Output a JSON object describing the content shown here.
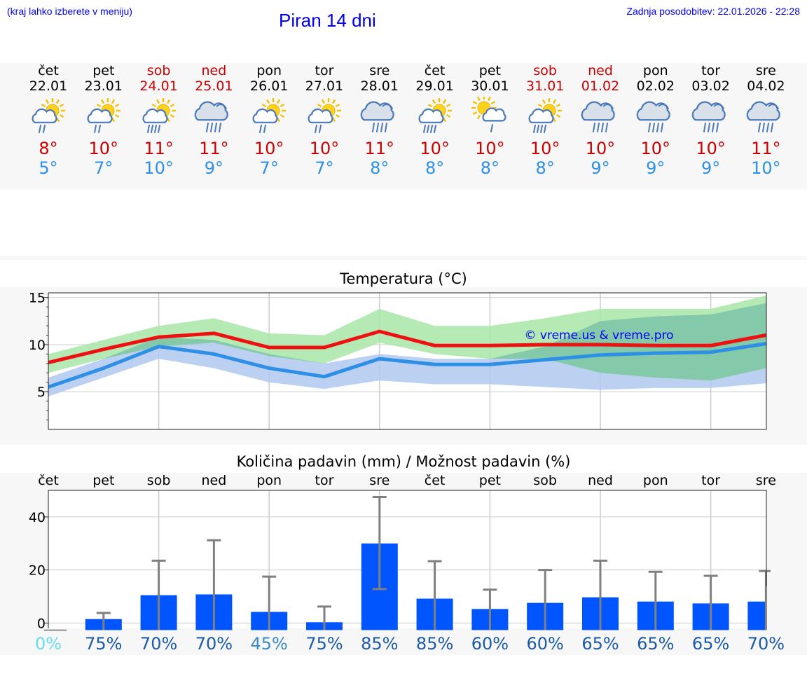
{
  "header": {
    "menu_hint": "(kraj lahko izberete v meniju)",
    "title": "Piran 14 dni",
    "last_update": "Zadnja posodobitev: 22.01.2026 - 22:28"
  },
  "days": [
    {
      "name": "čet",
      "date": "22.01",
      "icon": "rain-sun-icon",
      "max": "8°",
      "min": "5°",
      "weekend": false
    },
    {
      "name": "pet",
      "date": "23.01",
      "icon": "rain-sun-icon",
      "max": "10°",
      "min": "7°",
      "weekend": false
    },
    {
      "name": "sob",
      "date": "24.01",
      "icon": "heavy-rain-sun-icon",
      "max": "11°",
      "min": "10°",
      "weekend": true
    },
    {
      "name": "ned",
      "date": "25.01",
      "icon": "heavy-rain-cloud-icon",
      "max": "11°",
      "min": "9°",
      "weekend": true
    },
    {
      "name": "pon",
      "date": "26.01",
      "icon": "rain-sun-icon",
      "max": "10°",
      "min": "7°",
      "weekend": false
    },
    {
      "name": "tor",
      "date": "27.01",
      "icon": "rain-sun-icon",
      "max": "10°",
      "min": "7°",
      "weekend": false
    },
    {
      "name": "sre",
      "date": "28.01",
      "icon": "heavy-rain-cloud-icon",
      "max": "11°",
      "min": "8°",
      "weekend": false
    },
    {
      "name": "čet",
      "date": "29.01",
      "icon": "heavy-rain-sun-icon",
      "max": "10°",
      "min": "8°",
      "weekend": false
    },
    {
      "name": "pet",
      "date": "30.01",
      "icon": "sun-shower-icon",
      "max": "10°",
      "min": "8°",
      "weekend": false
    },
    {
      "name": "sob",
      "date": "31.01",
      "icon": "heavy-rain-sun-icon",
      "max": "10°",
      "min": "8°",
      "weekend": true
    },
    {
      "name": "ned",
      "date": "01.02",
      "icon": "heavy-rain-cloud-icon",
      "max": "10°",
      "min": "9°",
      "weekend": true
    },
    {
      "name": "pon",
      "date": "02.02",
      "icon": "heavy-rain-cloud-icon",
      "max": "10°",
      "min": "9°",
      "weekend": false
    },
    {
      "name": "tor",
      "date": "03.02",
      "icon": "heavy-rain-cloud-icon",
      "max": "10°",
      "min": "9°",
      "weekend": false
    },
    {
      "name": "sre",
      "date": "04.02",
      "icon": "heavy-rain-cloud-icon",
      "max": "11°",
      "min": "10°",
      "weekend": false
    }
  ],
  "colors": {
    "max_line": "#ee1111",
    "min_line": "#2e8fe6",
    "max_band": "#a8e6a8",
    "min_band": "#b0c8f0",
    "overlap_band": "#7cc4a8",
    "bar": "#0055ff",
    "error_bar": "#808080",
    "weekend": "#cc0000",
    "link": "#0000ee"
  },
  "chart_data": [
    {
      "type": "line",
      "title": "Temperatura (°C)",
      "watermark": "© vreme.us & vreme.pro",
      "x": [
        0,
        1,
        2,
        3,
        4,
        5,
        6,
        7,
        8,
        9,
        10,
        11,
        12,
        13
      ],
      "ylim": [
        1,
        15.5
      ],
      "yticks": [
        5,
        10,
        15
      ],
      "series": [
        {
          "name": "max",
          "values": [
            8.1,
            9.5,
            10.8,
            11.2,
            9.7,
            9.7,
            11.4,
            9.9,
            9.9,
            10.0,
            10.0,
            9.9,
            9.9,
            11.0
          ]
        },
        {
          "name": "min",
          "values": [
            5.5,
            7.5,
            9.8,
            9.0,
            7.5,
            6.6,
            8.5,
            7.9,
            7.9,
            8.4,
            8.9,
            9.1,
            9.2,
            10.1
          ]
        }
      ],
      "bands": [
        {
          "name": "max_range",
          "low": [
            7.0,
            8.5,
            9.8,
            10.2,
            8.8,
            8.0,
            10.2,
            9.0,
            8.5,
            8.5,
            7.0,
            6.5,
            6.2,
            7.5
          ],
          "high": [
            9.0,
            10.5,
            12.0,
            12.8,
            11.2,
            11.0,
            13.8,
            12.0,
            12.0,
            12.8,
            13.8,
            13.8,
            13.8,
            15.2
          ]
        },
        {
          "name": "min_range",
          "low": [
            4.5,
            6.5,
            8.5,
            7.5,
            6.0,
            5.3,
            6.2,
            5.8,
            5.8,
            5.5,
            5.2,
            5.4,
            5.4,
            5.9
          ],
          "high": [
            6.5,
            8.5,
            10.8,
            10.5,
            9.0,
            8.0,
            9.0,
            8.5,
            8.5,
            9.8,
            12.5,
            13.0,
            13.2,
            14.4
          ]
        }
      ]
    },
    {
      "type": "bar",
      "title": "Količina padavin (mm) / Možnost padavin (%)",
      "categories": [
        "čet",
        "pet",
        "sob",
        "ned",
        "pon",
        "tor",
        "sre",
        "čet",
        "pet",
        "sob",
        "ned",
        "pon",
        "tor",
        "sre"
      ],
      "values": [
        0,
        1.5,
        10.5,
        10.8,
        4.2,
        0.3,
        30.0,
        9.2,
        5.3,
        7.6,
        9.7,
        8.1,
        7.4,
        8.1
      ],
      "error_high": [
        0,
        3.8,
        23.5,
        31.2,
        17.5,
        6.2,
        47.5,
        23.3,
        12.6,
        20.0,
        23.5,
        19.3,
        17.8,
        19.6
      ],
      "error_low": [
        0,
        0,
        0,
        0,
        0,
        0,
        12.8,
        0,
        0,
        0,
        0,
        0,
        0,
        0
      ],
      "ylim": [
        -2,
        50
      ],
      "yticks": [
        0,
        20,
        40
      ],
      "chances": [
        "0%",
        "75%",
        "70%",
        "70%",
        "45%",
        "75%",
        "85%",
        "85%",
        "60%",
        "60%",
        "65%",
        "65%",
        "65%",
        "70%"
      ],
      "chance_colors": [
        "#66ddee",
        "#1a5aa8",
        "#1a5aa8",
        "#1a5aa8",
        "#3a8ac8",
        "#1a5aa8",
        "#1a5aa8",
        "#1a5aa8",
        "#1a5aa8",
        "#1a5aa8",
        "#1a5aa8",
        "#1a5aa8",
        "#1a5aa8",
        "#1a5aa8"
      ]
    }
  ]
}
